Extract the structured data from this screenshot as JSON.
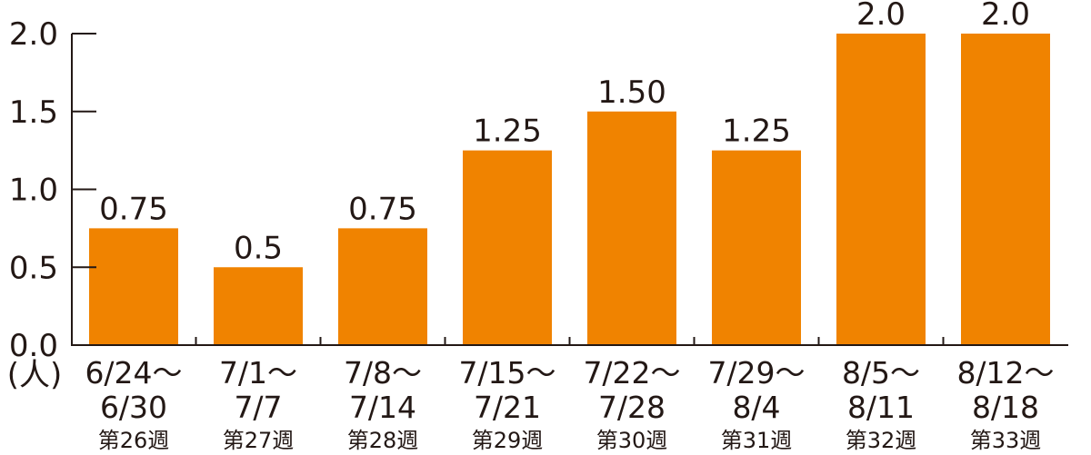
{
  "chart_data": {
    "type": "bar",
    "categories": [
      "6/24〜6/30 第26週",
      "7/1〜7/7 第27週",
      "7/8〜7/14 第28週",
      "7/15〜7/21 第29週",
      "7/22〜7/28 第30週",
      "7/29〜8/4 第31週",
      "8/5〜8/11 第32週",
      "8/12〜8/18 第33週"
    ],
    "category_lines": [
      [
        "6/24〜",
        "6/30",
        "第26週"
      ],
      [
        "7/1〜",
        "7/7",
        "第27週"
      ],
      [
        "7/8〜",
        "7/14",
        "第28週"
      ],
      [
        "7/15〜",
        "7/21",
        "第29週"
      ],
      [
        "7/22〜",
        "7/28",
        "第30週"
      ],
      [
        "7/29〜",
        "8/4",
        "第31週"
      ],
      [
        "8/5〜",
        "8/11",
        "第32週"
      ],
      [
        "8/12〜",
        "8/18",
        "第33週"
      ]
    ],
    "values": [
      0.75,
      0.5,
      0.75,
      1.25,
      1.5,
      1.25,
      2.0,
      2.0
    ],
    "data_labels": [
      "0.75",
      "0.5",
      "0.75",
      "1.25",
      "1.50",
      "1.25",
      "2.0",
      "2.0"
    ],
    "yticks": [
      "0.0",
      "0.5",
      "1.0",
      "1.5",
      "2.0"
    ],
    "ylabel": "(人)",
    "ylim": [
      0,
      2.0
    ],
    "grid": false,
    "bar_color": "#F08300"
  }
}
